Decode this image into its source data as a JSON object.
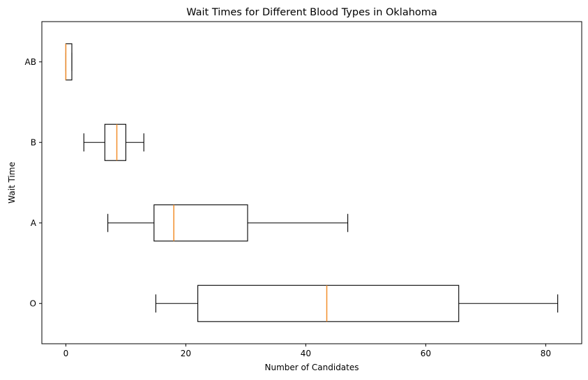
{
  "chart_data": {
    "type": "boxplot",
    "orientation": "horizontal",
    "title": "Wait Times for Different Blood Types in Oklahoma",
    "xlabel": "Number of Candidates",
    "ylabel": "Wait Time",
    "xlim": [
      -4,
      86
    ],
    "xticks": [
      0,
      20,
      40,
      60,
      80
    ],
    "grid": false,
    "median_color": "#f28e2b",
    "box_color": "#000000",
    "series": [
      {
        "name": "O",
        "whislo": 15,
        "q1": 22,
        "med": 43.5,
        "q3": 65.5,
        "whishi": 82
      },
      {
        "name": "A",
        "whislo": 7,
        "q1": 14.7,
        "med": 18,
        "q3": 30.3,
        "whishi": 47
      },
      {
        "name": "B",
        "whislo": 3,
        "q1": 6.5,
        "med": 8.5,
        "q3": 10,
        "whishi": 13
      },
      {
        "name": "AB",
        "whislo": 0,
        "q1": 0,
        "med": 0,
        "q3": 1,
        "whishi": 1
      }
    ]
  }
}
